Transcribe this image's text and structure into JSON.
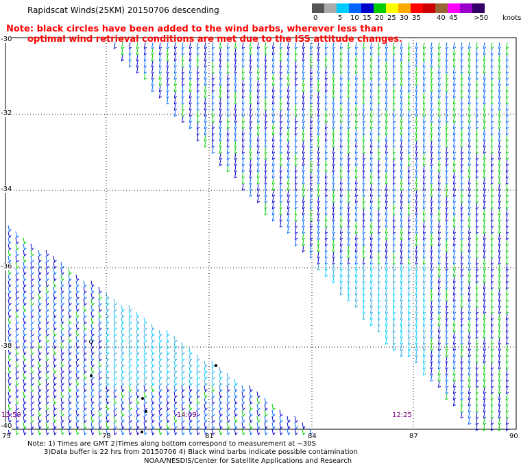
{
  "header": {
    "title": "Rapidscat Winds(25KM) 20150706 descending",
    "note_line1": "Note: black circles have been added to the wind barbs, wherever less than",
    "note_line2": "optimal wind retrieval conditions are met due to the ISS attitude changes."
  },
  "legend": {
    "unit": "knots",
    "bins": [
      {
        "label": "0",
        "color": "#555555"
      },
      {
        "label": "",
        "color": "#aaaaaa"
      },
      {
        "label": "5",
        "color": "#00ccff"
      },
      {
        "label": "10",
        "color": "#0066ff"
      },
      {
        "label": "15",
        "color": "#0000cc"
      },
      {
        "label": "20",
        "color": "#00cc00"
      },
      {
        "label": "25",
        "color": "#ffff00"
      },
      {
        "label": "30",
        "color": "#ffaa00"
      },
      {
        "label": "35",
        "color": "#ff0000"
      },
      {
        "label": "",
        "color": "#cc0000"
      },
      {
        "label": "40",
        "color": "#996633"
      },
      {
        "label": "45",
        "color": "#ff00ff"
      },
      {
        "label": "",
        "color": "#9900cc"
      },
      {
        "label": ">50",
        "color": "#330066"
      }
    ]
  },
  "axes": {
    "lat_labels": [
      "-30",
      "-32",
      "-34",
      "-36",
      "-38",
      "-40"
    ],
    "lon_labels": [
      "75",
      "78",
      "81",
      "84",
      "87",
      "90"
    ]
  },
  "swath_times": [
    "13:59",
    "14:09",
    "12:25"
  ],
  "footer": {
    "line1": "Note: 1) Times are GMT 2)Times along bottom correspond to measurement at ~30S",
    "line2": "3)Data buffer is 22 hrs from 20150706 4) Black wind barbs indicate possible contamination",
    "line3": "NOAA/NESDIS/Center for Satellite Applications and Research"
  },
  "colors": {
    "grid": "#000000",
    "note": "#ff0000",
    "time": "#800080",
    "barb_light": "#00ccff",
    "barb_mid": "#0066ff",
    "barb_dark": "#0000cc",
    "barb_green": "#00cc00"
  }
}
